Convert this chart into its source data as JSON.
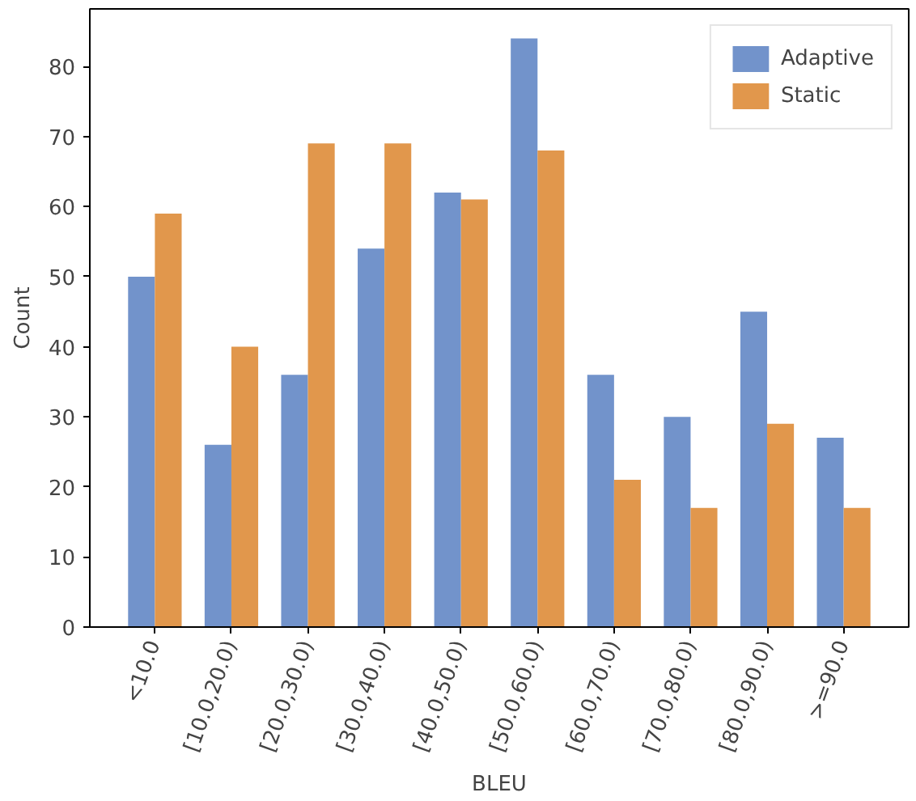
{
  "chart_data": {
    "type": "bar",
    "xlabel": "BLEU",
    "ylabel": "Count",
    "categories": [
      "<10.0",
      "[10.0,20.0)",
      "[20.0,30.0)",
      "[30.0,40.0)",
      "[40.0,50.0)",
      "[50.0,60.0)",
      "[60.0,70.0)",
      "[70.0,80.0)",
      "[80.0,90.0)",
      ">=90.0"
    ],
    "series": [
      {
        "name": "Adaptive",
        "color": "#7293cb",
        "values": [
          50,
          26,
          36,
          54,
          62,
          84,
          36,
          30,
          45,
          27
        ]
      },
      {
        "name": "Static",
        "color": "#e1974c",
        "values": [
          59,
          40,
          69,
          69,
          61,
          68,
          21,
          17,
          29,
          17
        ]
      }
    ],
    "ylim": [
      0,
      88.2
    ],
    "yticks": [
      0,
      10,
      20,
      30,
      40,
      50,
      60,
      70,
      80
    ],
    "grid": false,
    "legend": "top right"
  }
}
